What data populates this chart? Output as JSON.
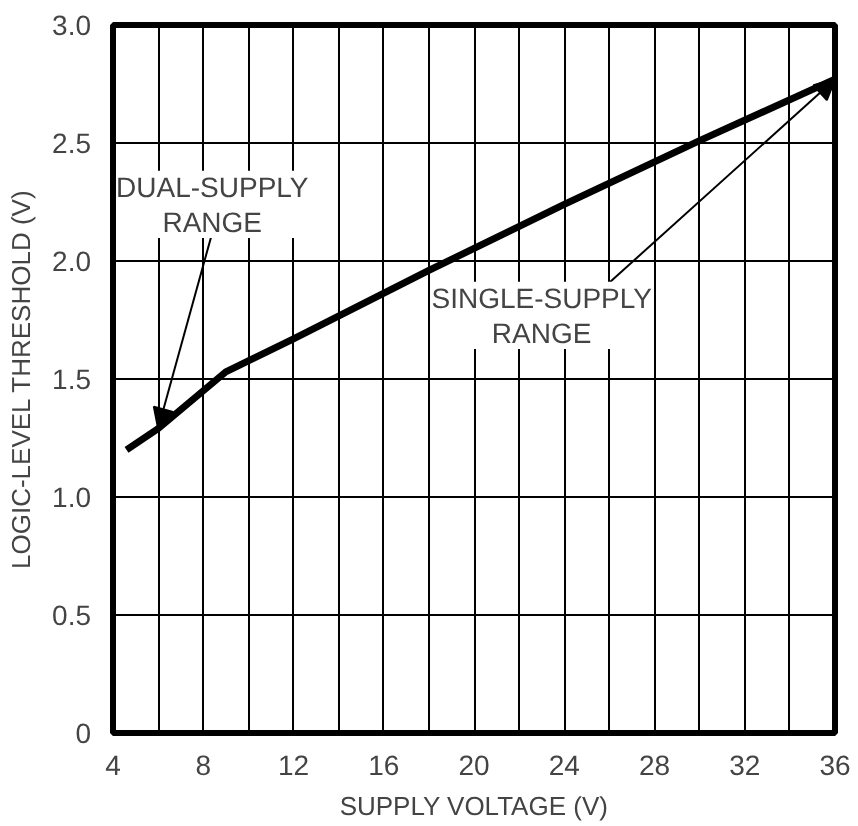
{
  "chart_data": {
    "type": "line",
    "xlabel": "SUPPLY VOLTAGE (V)",
    "ylabel": "LOGIC-LEVEL THRESHOLD (V)",
    "series": [
      {
        "color": "#000000",
        "x": [
          4.6,
          6,
          9,
          12,
          18,
          24,
          30,
          36
        ],
        "values": [
          1.2,
          1.29,
          1.53,
          1.67,
          1.96,
          2.24,
          2.51,
          2.77
        ]
      }
    ],
    "xlim": [
      4,
      36
    ],
    "ylim": [
      0,
      3
    ],
    "xticks": [
      4,
      {
        "value": 6,
        "label": null
      },
      8,
      {
        "value": 10,
        "label": null
      },
      12,
      {
        "value": 14,
        "label": null
      },
      16,
      {
        "value": 18,
        "label": null
      },
      20,
      {
        "value": 22,
        "label": null
      },
      24,
      {
        "value": 26,
        "label": null
      },
      28,
      {
        "value": 30,
        "label": null
      },
      32,
      {
        "value": 34,
        "label": null
      },
      36
    ],
    "yticks": [
      0,
      0.5,
      {
        "value": 1,
        "label": "1.0"
      },
      1.5,
      {
        "value": 2,
        "label": "2.0"
      },
      2.5,
      {
        "value": 3,
        "label": "3.0"
      }
    ],
    "grid": true,
    "marker": "none",
    "line_style": "solid",
    "annotations": [
      {
        "text": "DUAL-SUPPLY\nRANGE",
        "x": 6,
        "y": 1.29
      },
      {
        "text": "SINGLE-SUPPLY\nRANGE",
        "x": 36,
        "y": 2.77
      }
    ]
  }
}
